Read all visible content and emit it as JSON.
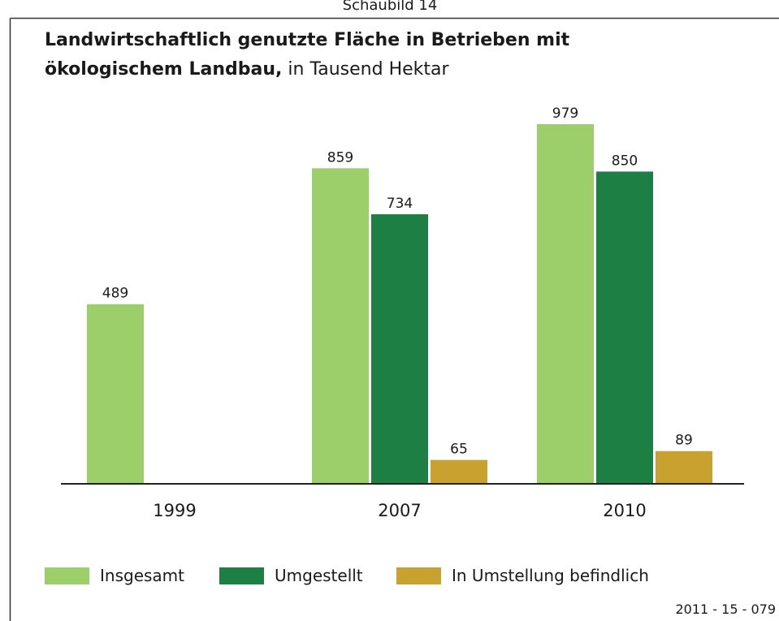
{
  "chart_data": {
    "type": "bar",
    "label": "Schaubild 14",
    "title_bold": [
      "Landwirtschaftlich genutzte Fläche in Betrieben mit",
      "ökologischem Landbau,"
    ],
    "title_rest": "in Tausend Hektar",
    "categories": [
      "1999",
      "2007",
      "2010"
    ],
    "series": [
      {
        "name": "Insgesamt",
        "color": "#9ccf6a",
        "values": [
          489,
          859,
          979
        ]
      },
      {
        "name": "Umgestellt",
        "color": "#1d7f44",
        "values": [
          null,
          734,
          850
        ]
      },
      {
        "name": "In Umstellung befindlich",
        "color": "#c8a12f",
        "values": [
          null,
          65,
          89
        ]
      }
    ],
    "source": "2011 - 15 - 079"
  }
}
